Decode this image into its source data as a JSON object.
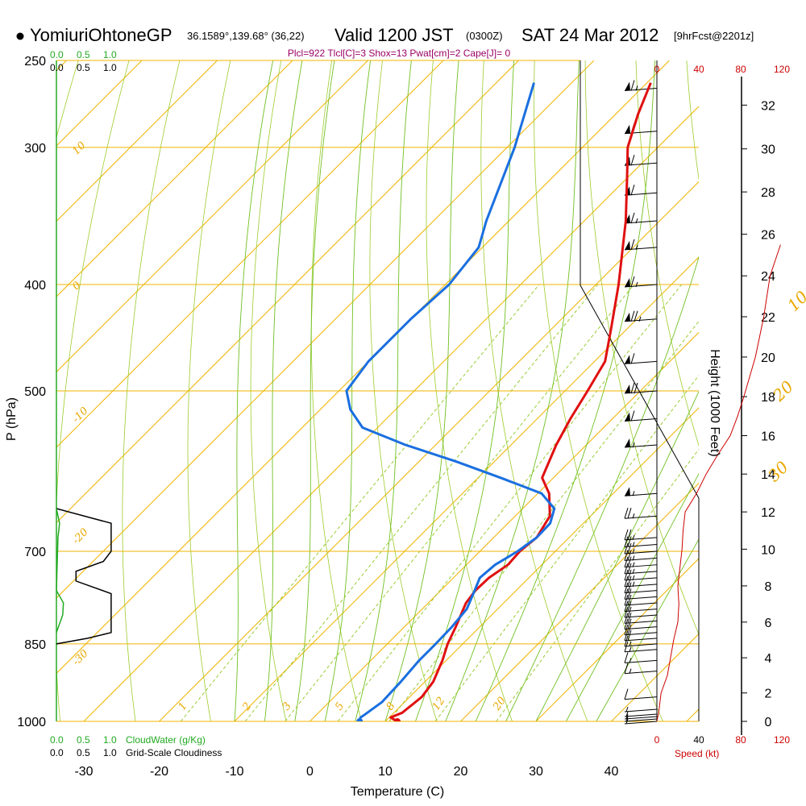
{
  "header": {
    "station": "YomiuriOhtoneGP",
    "coords": "36.1589°,139.68° (36,22)",
    "valid": "Valid 1200 JST",
    "utc": "(0300Z)",
    "date": "SAT 24 Mar 2012",
    "forecast": "[9hrFcst@2201z]",
    "indices": "Plcl=922 Tlcl[C]=3 Shox=13 Pwat[cm]=2 Cape[J]= 0"
  },
  "colors": {
    "temperature": "#e01010",
    "dewpoint": "#1a6fe0",
    "isotherm": "#f0b400",
    "dry_adiabat": "#9ccc2a",
    "moist_adiabat": "#70c020",
    "mixing_ratio": "#99cc33",
    "cloudwater": "#22aa22",
    "speed": "#cc0000"
  },
  "chart_data": {
    "type": "skewt-logp",
    "title": "Skew-T log-P sounding",
    "xlabel": "Temperature (C)",
    "ylabel": "P (hPa)",
    "right_axis_label": "Height (1000 Feet)",
    "x_ticks": [
      -30,
      -20,
      -10,
      0,
      10,
      20,
      30,
      40
    ],
    "pressure_ticks": [
      250,
      300,
      400,
      500,
      700,
      850,
      1000
    ],
    "height_ticks": [
      0,
      2,
      4,
      6,
      8,
      10,
      12,
      14,
      16,
      18,
      20,
      22,
      24,
      26,
      28,
      30,
      32
    ],
    "isotherm_labels": [
      {
        "t": 0,
        "p": 330,
        "label": "0"
      },
      {
        "t": 10,
        "p": 424,
        "label": "10"
      },
      {
        "t": 20,
        "p": 512,
        "label": "20"
      },
      {
        "t": 30,
        "p": 606,
        "label": "30"
      },
      {
        "t": 10,
        "p": 305,
        "label": "10"
      },
      {
        "t": 0,
        "p": 405,
        "label": "0"
      },
      {
        "t": -10,
        "p": 535,
        "label": "-10"
      },
      {
        "t": -20,
        "p": 690,
        "label": "-20"
      },
      {
        "t": -30,
        "p": 890,
        "label": "-30"
      }
    ],
    "mixing_ratio_labels": [
      "1",
      "2",
      "3",
      "5",
      "8",
      "12",
      "20"
    ],
    "mixing_ratios_gkg": [
      1,
      2,
      3,
      5,
      8,
      12,
      20
    ],
    "temperature_profile": [
      {
        "p": 1000,
        "t": 11.6
      },
      {
        "p": 992,
        "t": 10.2
      },
      {
        "p": 982,
        "t": 11.1
      },
      {
        "p": 950,
        "t": 11.6
      },
      {
        "p": 920,
        "t": 11.1
      },
      {
        "p": 880,
        "t": 9.5
      },
      {
        "p": 850,
        "t": 8.0
      },
      {
        "p": 820,
        "t": 6.8
      },
      {
        "p": 780,
        "t": 5.0
      },
      {
        "p": 760,
        "t": 4.6
      },
      {
        "p": 740,
        "t": 4.7
      },
      {
        "p": 720,
        "t": 5.5
      },
      {
        "p": 700,
        "t": 5.3
      },
      {
        "p": 680,
        "t": 5.7
      },
      {
        "p": 650,
        "t": 4.6
      },
      {
        "p": 620,
        "t": 1.5
      },
      {
        "p": 600,
        "t": -1.5
      },
      {
        "p": 560,
        "t": -4.0
      },
      {
        "p": 530,
        "t": -5.6
      },
      {
        "p": 500,
        "t": -7.0
      },
      {
        "p": 470,
        "t": -8.6
      },
      {
        "p": 440,
        "t": -12.0
      },
      {
        "p": 400,
        "t": -17.0
      },
      {
        "p": 350,
        "t": -24.5
      },
      {
        "p": 320,
        "t": -30.0
      },
      {
        "p": 300,
        "t": -34.0
      },
      {
        "p": 280,
        "t": -37.0
      },
      {
        "p": 262,
        "t": -39.5
      }
    ],
    "dewpoint_profile": [
      {
        "p": 1000,
        "t": 6.6
      },
      {
        "p": 992,
        "t": 6.2
      },
      {
        "p": 985,
        "t": 6.4
      },
      {
        "p": 960,
        "t": 7.0
      },
      {
        "p": 920,
        "t": 6.8
      },
      {
        "p": 880,
        "t": 6.4
      },
      {
        "p": 850,
        "t": 6.4
      },
      {
        "p": 820,
        "t": 6.3
      },
      {
        "p": 790,
        "t": 5.9
      },
      {
        "p": 760,
        "t": 4.5
      },
      {
        "p": 740,
        "t": 3.5
      },
      {
        "p": 720,
        "t": 3.8
      },
      {
        "p": 700,
        "t": 5.0
      },
      {
        "p": 680,
        "t": 5.7
      },
      {
        "p": 660,
        "t": 5.6
      },
      {
        "p": 640,
        "t": 4.2
      },
      {
        "p": 620,
        "t": 0.5
      },
      {
        "p": 600,
        "t": -7.0
      },
      {
        "p": 580,
        "t": -15.0
      },
      {
        "p": 560,
        "t": -24.0
      },
      {
        "p": 540,
        "t": -32.0
      },
      {
        "p": 520,
        "t": -36.0
      },
      {
        "p": 500,
        "t": -39.0
      },
      {
        "p": 470,
        "t": -40.0
      },
      {
        "p": 430,
        "t": -40.0
      },
      {
        "p": 400,
        "t": -39.5
      },
      {
        "p": 370,
        "t": -40.5
      },
      {
        "p": 350,
        "t": -43.0
      },
      {
        "p": 300,
        "t": -49.0
      },
      {
        "p": 262,
        "t": -55.0
      }
    ],
    "cloudiness_profile": [
      {
        "p": 640,
        "c": 0
      },
      {
        "p": 660,
        "c": 0.7
      },
      {
        "p": 700,
        "c": 0.7
      },
      {
        "p": 715,
        "c": 0.6
      },
      {
        "p": 730,
        "c": 0.25
      },
      {
        "p": 745,
        "c": 0.25
      },
      {
        "p": 765,
        "c": 0.7
      },
      {
        "p": 830,
        "c": 0.7
      },
      {
        "p": 840,
        "c": 0.4
      },
      {
        "p": 850,
        "c": 0
      }
    ],
    "cloudwater_profile": [
      {
        "p": 640,
        "c": 0
      },
      {
        "p": 660,
        "c": 0.04
      },
      {
        "p": 680,
        "c": 0.02
      },
      {
        "p": 760,
        "c": 0
      },
      {
        "p": 780,
        "c": 0.09
      },
      {
        "p": 800,
        "c": 0.08
      },
      {
        "p": 830,
        "c": 0
      }
    ],
    "wind_speed_profile": [
      {
        "h": 0.0,
        "kt": 0
      },
      {
        "h": 1.0,
        "kt": 2
      },
      {
        "h": 2.0,
        "kt": 4
      },
      {
        "h": 3.0,
        "kt": 10
      },
      {
        "h": 4.0,
        "kt": 13
      },
      {
        "h": 5.0,
        "kt": 16
      },
      {
        "h": 6.0,
        "kt": 20
      },
      {
        "h": 7.0,
        "kt": 21
      },
      {
        "h": 8.0,
        "kt": 20
      },
      {
        "h": 9.0,
        "kt": 22
      },
      {
        "h": 10.0,
        "kt": 24
      },
      {
        "h": 11.0,
        "kt": 25
      },
      {
        "h": 12.0,
        "kt": 27
      },
      {
        "h": 13.0,
        "kt": 38
      },
      {
        "h": 14.0,
        "kt": 47
      },
      {
        "h": 15.0,
        "kt": 58
      },
      {
        "h": 16.0,
        "kt": 70
      },
      {
        "h": 17.0,
        "kt": 77
      },
      {
        "h": 18.0,
        "kt": 83
      },
      {
        "h": 20.0,
        "kt": 94
      },
      {
        "h": 22.0,
        "kt": 102
      },
      {
        "h": 24.0,
        "kt": 108
      },
      {
        "h": 25.5,
        "kt": 118
      }
    ],
    "barbs": [
      {
        "p": 1000,
        "kt": 5
      },
      {
        "p": 995,
        "kt": 5
      },
      {
        "p": 990,
        "kt": 5
      },
      {
        "p": 985,
        "kt": 5
      },
      {
        "p": 975,
        "kt": 5
      },
      {
        "p": 950,
        "kt": 10
      },
      {
        "p": 900,
        "kt": 15
      },
      {
        "p": 880,
        "kt": 15
      },
      {
        "p": 860,
        "kt": 15
      },
      {
        "p": 850,
        "kt": 15
      },
      {
        "p": 840,
        "kt": 20
      },
      {
        "p": 830,
        "kt": 20
      },
      {
        "p": 820,
        "kt": 20
      },
      {
        "p": 810,
        "kt": 20
      },
      {
        "p": 800,
        "kt": 20
      },
      {
        "p": 790,
        "kt": 20
      },
      {
        "p": 780,
        "kt": 20
      },
      {
        "p": 770,
        "kt": 20
      },
      {
        "p": 760,
        "kt": 20
      },
      {
        "p": 750,
        "kt": 25
      },
      {
        "p": 740,
        "kt": 25
      },
      {
        "p": 730,
        "kt": 25
      },
      {
        "p": 720,
        "kt": 25
      },
      {
        "p": 710,
        "kt": 25
      },
      {
        "p": 700,
        "kt": 25
      },
      {
        "p": 690,
        "kt": 25
      },
      {
        "p": 680,
        "kt": 25
      },
      {
        "p": 650,
        "kt": 25
      },
      {
        "p": 620,
        "kt": 55
      },
      {
        "p": 560,
        "kt": 55
      },
      {
        "p": 530,
        "kt": 60
      },
      {
        "p": 500,
        "kt": 70
      },
      {
        "p": 470,
        "kt": 60
      },
      {
        "p": 430,
        "kt": 75
      },
      {
        "p": 400,
        "kt": 65
      },
      {
        "p": 370,
        "kt": 65
      },
      {
        "p": 350,
        "kt": 65
      },
      {
        "p": 330,
        "kt": 60
      },
      {
        "p": 310,
        "kt": 60
      },
      {
        "p": 290,
        "kt": 60
      },
      {
        "p": 265,
        "kt": 65
      }
    ],
    "cloud_axis": {
      "cloudwater_ticks": [
        "0.0",
        "0.5",
        "1.0"
      ],
      "cloudiness_ticks": [
        "0.0",
        "0.5",
        "1.0"
      ],
      "cloudwater_label": "CloudWater (g/Kg)",
      "cloudiness_label": "Grid-Scale Cloudiness"
    },
    "speed_axis": {
      "ticks": [
        "0",
        "40",
        "80",
        "120"
      ],
      "label": "Speed (kt)"
    }
  }
}
